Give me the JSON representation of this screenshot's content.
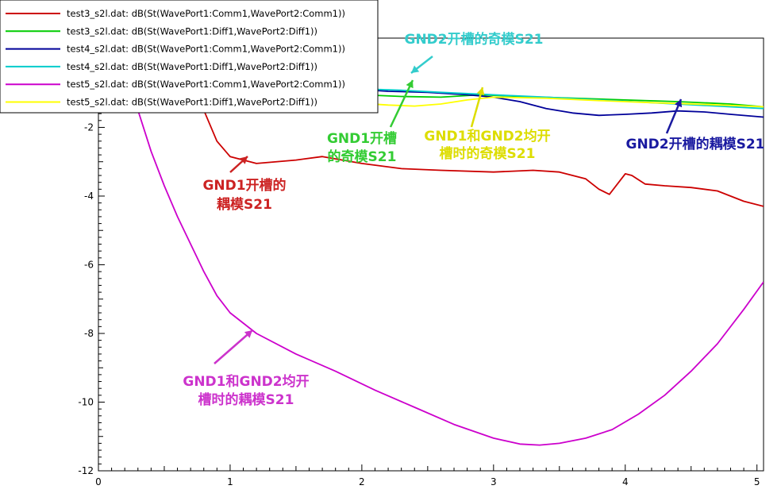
{
  "chart_data": {
    "type": "line",
    "title": "",
    "xlabel": "",
    "ylabel": "",
    "xlim": [
      0,
      5.05
    ],
    "ylim": [
      -12,
      0.6
    ],
    "grid": false,
    "legend_placement": "top-left",
    "x_ticks": [
      {
        "value": 0,
        "label": "0"
      },
      {
        "value": 1,
        "label": "1"
      },
      {
        "value": 2,
        "label": "2"
      },
      {
        "value": 3,
        "label": "3"
      },
      {
        "value": 4,
        "label": "4"
      },
      {
        "value": 5,
        "label": "5"
      }
    ],
    "y_ticks": [
      {
        "value": -2,
        "label": "-2"
      },
      {
        "value": -4,
        "label": "-4"
      },
      {
        "value": -6,
        "label": "-6"
      },
      {
        "value": -8,
        "label": "-8"
      },
      {
        "value": -10,
        "label": "-10"
      },
      {
        "value": -12,
        "label": "-12"
      }
    ],
    "series": [
      {
        "name": "test3_s2l.dat: dB(St(WavePort1:Comm1,WavePort2:Comm1))",
        "color": "#cc0000",
        "points": [
          [
            0.5,
            0.5
          ],
          [
            0.6,
            -0.2
          ],
          [
            0.7,
            -0.8
          ],
          [
            0.8,
            -1.5
          ],
          [
            0.9,
            -2.4
          ],
          [
            1.0,
            -2.85
          ],
          [
            1.2,
            -3.05
          ],
          [
            1.5,
            -2.95
          ],
          [
            1.7,
            -2.85
          ],
          [
            2.0,
            -3.05
          ],
          [
            2.3,
            -3.2
          ],
          [
            2.6,
            -3.25
          ],
          [
            3.0,
            -3.3
          ],
          [
            3.3,
            -3.25
          ],
          [
            3.5,
            -3.3
          ],
          [
            3.7,
            -3.5
          ],
          [
            3.8,
            -3.8
          ],
          [
            3.88,
            -3.95
          ],
          [
            3.95,
            -3.6
          ],
          [
            4.0,
            -3.35
          ],
          [
            4.05,
            -3.4
          ],
          [
            4.15,
            -3.65
          ],
          [
            4.3,
            -3.7
          ],
          [
            4.5,
            -3.75
          ],
          [
            4.7,
            -3.85
          ],
          [
            4.9,
            -4.15
          ],
          [
            5.05,
            -4.3
          ]
        ]
      },
      {
        "name": "test3_s2l.dat: dB(St(WavePort1:Diff1,WavePort2:Diff1))",
        "color": "#00cc00",
        "points": [
          [
            2.0,
            -1.05
          ],
          [
            2.3,
            -1.1
          ],
          [
            2.6,
            -1.12
          ],
          [
            2.9,
            -1.05
          ],
          [
            3.2,
            -1.1
          ],
          [
            3.6,
            -1.15
          ],
          [
            4.0,
            -1.2
          ],
          [
            4.4,
            -1.25
          ],
          [
            4.8,
            -1.32
          ],
          [
            5.05,
            -1.4
          ]
        ]
      },
      {
        "name": "test4_s2l.dat: dB(St(WavePort1:Comm1,WavePort2:Comm1))",
        "color": "#000099",
        "points": [
          [
            2.0,
            -0.9
          ],
          [
            2.2,
            -0.95
          ],
          [
            2.5,
            -0.98
          ],
          [
            2.8,
            -1.05
          ],
          [
            3.0,
            -1.12
          ],
          [
            3.2,
            -1.25
          ],
          [
            3.4,
            -1.45
          ],
          [
            3.6,
            -1.58
          ],
          [
            3.8,
            -1.65
          ],
          [
            4.0,
            -1.62
          ],
          [
            4.2,
            -1.58
          ],
          [
            4.4,
            -1.52
          ],
          [
            4.6,
            -1.55
          ],
          [
            4.8,
            -1.62
          ],
          [
            5.05,
            -1.7
          ]
        ]
      },
      {
        "name": "test4_s2l.dat: dB(St(WavePort1:Diff1,WavePort2:Diff1))",
        "color": "#00cccc",
        "points": [
          [
            2.0,
            -0.88
          ],
          [
            2.3,
            -0.92
          ],
          [
            2.6,
            -0.98
          ],
          [
            3.0,
            -1.05
          ],
          [
            3.4,
            -1.12
          ],
          [
            3.8,
            -1.2
          ],
          [
            4.2,
            -1.28
          ],
          [
            4.6,
            -1.36
          ],
          [
            5.05,
            -1.45
          ]
        ]
      },
      {
        "name": "test5_s2l.dat: dB(St(WavePort1:Comm1,WavePort2:Comm1))",
        "color": "#cc00cc",
        "points": [
          [
            0.2,
            -0.2
          ],
          [
            0.3,
            -1.5
          ],
          [
            0.4,
            -2.7
          ],
          [
            0.5,
            -3.7
          ],
          [
            0.6,
            -4.6
          ],
          [
            0.7,
            -5.4
          ],
          [
            0.8,
            -6.2
          ],
          [
            0.9,
            -6.9
          ],
          [
            1.0,
            -7.4
          ],
          [
            1.2,
            -8.0
          ],
          [
            1.5,
            -8.6
          ],
          [
            1.8,
            -9.1
          ],
          [
            2.1,
            -9.65
          ],
          [
            2.4,
            -10.15
          ],
          [
            2.7,
            -10.65
          ],
          [
            3.0,
            -11.05
          ],
          [
            3.2,
            -11.22
          ],
          [
            3.35,
            -11.25
          ],
          [
            3.5,
            -11.2
          ],
          [
            3.7,
            -11.05
          ],
          [
            3.9,
            -10.8
          ],
          [
            4.1,
            -10.35
          ],
          [
            4.3,
            -9.8
          ],
          [
            4.5,
            -9.1
          ],
          [
            4.7,
            -8.3
          ],
          [
            4.9,
            -7.3
          ],
          [
            5.05,
            -6.5
          ]
        ]
      },
      {
        "name": "test5_s2l.dat: dB(St(WavePort1:Diff1,WavePort2:Diff1))",
        "color": "#ffff00",
        "points": [
          [
            2.0,
            -1.3
          ],
          [
            2.2,
            -1.35
          ],
          [
            2.4,
            -1.38
          ],
          [
            2.6,
            -1.32
          ],
          [
            2.8,
            -1.2
          ],
          [
            3.0,
            -1.12
          ],
          [
            3.4,
            -1.15
          ],
          [
            3.8,
            -1.22
          ],
          [
            4.2,
            -1.28
          ],
          [
            4.6,
            -1.33
          ],
          [
            5.05,
            -1.4
          ]
        ]
      }
    ],
    "annotations": [
      {
        "lines": [
          "GND2开槽的奇模S21"
        ],
        "color": "#33cccc"
      },
      {
        "lines": [
          "GND1开槽",
          "的奇模S21"
        ],
        "color": "#33cc33"
      },
      {
        "lines": [
          "GND1和GND2均开",
          "槽时的奇模S21"
        ],
        "color": "#dddd00"
      },
      {
        "lines": [
          "GND2开槽的耦模S21"
        ],
        "color": "#1a1aa0"
      },
      {
        "lines": [
          "GND1开槽的",
          "耦模S21"
        ],
        "color": "#cc2222"
      },
      {
        "lines": [
          "GND1和GND2均开",
          "槽时的耦模S21"
        ],
        "color": "#cc33cc"
      }
    ]
  }
}
